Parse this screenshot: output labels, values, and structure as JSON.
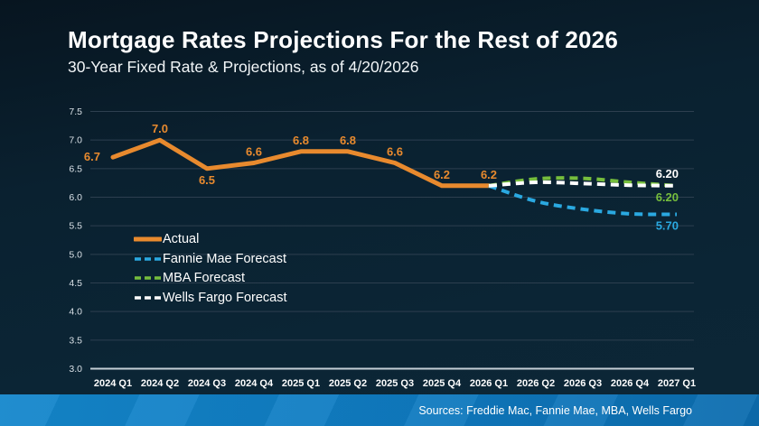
{
  "chart_data": {
    "type": "line",
    "title": "Mortgage Rates Projections For the Rest of 2026",
    "subtitle": "30-Year Fixed Rate & Projections, as of 4/20/2026",
    "xlabel": "",
    "ylabel": "",
    "ylim": [
      3.0,
      7.5
    ],
    "y_ticks": [
      "7.5",
      "7.0",
      "6.5",
      "6.0",
      "5.5",
      "5.0",
      "4.5",
      "4.0",
      "3.5",
      "3.0"
    ],
    "grid": "horizontal",
    "legend_position": "inside-left",
    "categories": [
      "2024 Q1",
      "2024 Q2",
      "2024 Q3",
      "2024 Q4",
      "2025 Q1",
      "2025 Q2",
      "2025 Q3",
      "2025 Q4",
      "2026 Q1",
      "2026 Q2",
      "2026 Q3",
      "2026 Q4",
      "2027 Q1"
    ],
    "series": [
      {
        "name": "Actual",
        "color": "#E88A2E",
        "style": "solid",
        "start_index": 0,
        "values": [
          6.7,
          7.0,
          6.5,
          6.6,
          6.8,
          6.8,
          6.6,
          6.2,
          6.2
        ],
        "point_labels": [
          "6.7",
          "7.0",
          "6.5",
          "6.6",
          "6.8",
          "6.8",
          "6.6",
          "6.2",
          "6.2"
        ],
        "label_placements": [
          "left",
          "above",
          "below",
          "above",
          "above",
          "above",
          "above",
          "above",
          "above"
        ]
      },
      {
        "name": "Fannie Mae Forecast",
        "color": "#2AA9E1",
        "style": "dashed",
        "start_index": 8,
        "values": [
          6.2,
          5.93,
          5.79,
          5.71,
          5.7
        ],
        "end_label": "5.70",
        "end_label_side": "below"
      },
      {
        "name": "MBA Forecast",
        "color": "#76BE3D",
        "style": "dashed",
        "start_index": 8,
        "values": [
          6.2,
          6.32,
          6.33,
          6.26,
          6.2
        ],
        "end_label": "6.20",
        "end_label_side": "below"
      },
      {
        "name": "Wells Fargo Forecast",
        "color": "#FFFFFF",
        "style": "dashed",
        "start_index": 8,
        "values": [
          6.2,
          6.26,
          6.24,
          6.21,
          6.2
        ],
        "end_label": "6.20",
        "end_label_side": "above"
      }
    ]
  },
  "footer": {
    "sources_label": "Sources: Freddie Mac, Fannie Mae, MBA, Wells Fargo",
    "bar_color": "#0F7AC0"
  }
}
